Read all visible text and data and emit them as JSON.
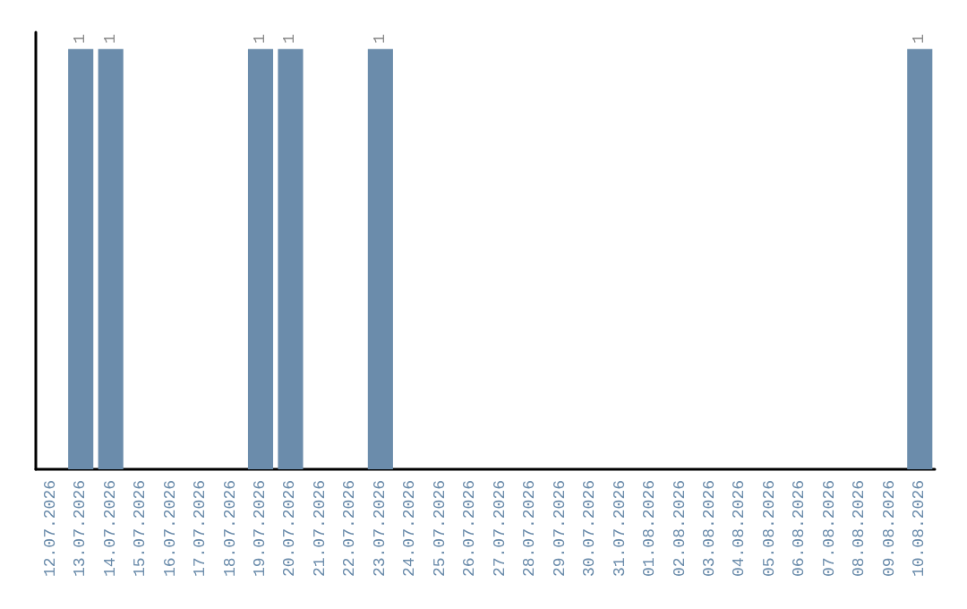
{
  "chart_data": {
    "type": "bar",
    "categories": [
      "12.07.2026",
      "13.07.2026",
      "14.07.2026",
      "15.07.2026",
      "16.07.2026",
      "17.07.2026",
      "18.07.2026",
      "19.07.2026",
      "20.07.2026",
      "21.07.2026",
      "22.07.2026",
      "23.07.2026",
      "24.07.2026",
      "25.07.2026",
      "26.07.2026",
      "27.07.2026",
      "28.07.2026",
      "29.07.2026",
      "30.07.2026",
      "31.07.2026",
      "01.08.2026",
      "02.08.2026",
      "03.08.2026",
      "04.08.2026",
      "05.08.2026",
      "06.08.2026",
      "07.08.2026",
      "08.08.2026",
      "09.08.2026",
      "10.08.2026"
    ],
    "values": [
      0,
      1,
      1,
      0,
      0,
      0,
      0,
      1,
      1,
      0,
      0,
      1,
      0,
      0,
      0,
      0,
      0,
      0,
      0,
      0,
      0,
      0,
      0,
      0,
      0,
      0,
      0,
      0,
      0,
      1
    ],
    "value_labels": [
      null,
      "1",
      "1",
      null,
      null,
      null,
      null,
      "1",
      "1",
      null,
      null,
      "1",
      null,
      null,
      null,
      null,
      null,
      null,
      null,
      null,
      null,
      null,
      null,
      null,
      null,
      null,
      null,
      null,
      null,
      "1"
    ],
    "color": "#6b8cab"
  }
}
